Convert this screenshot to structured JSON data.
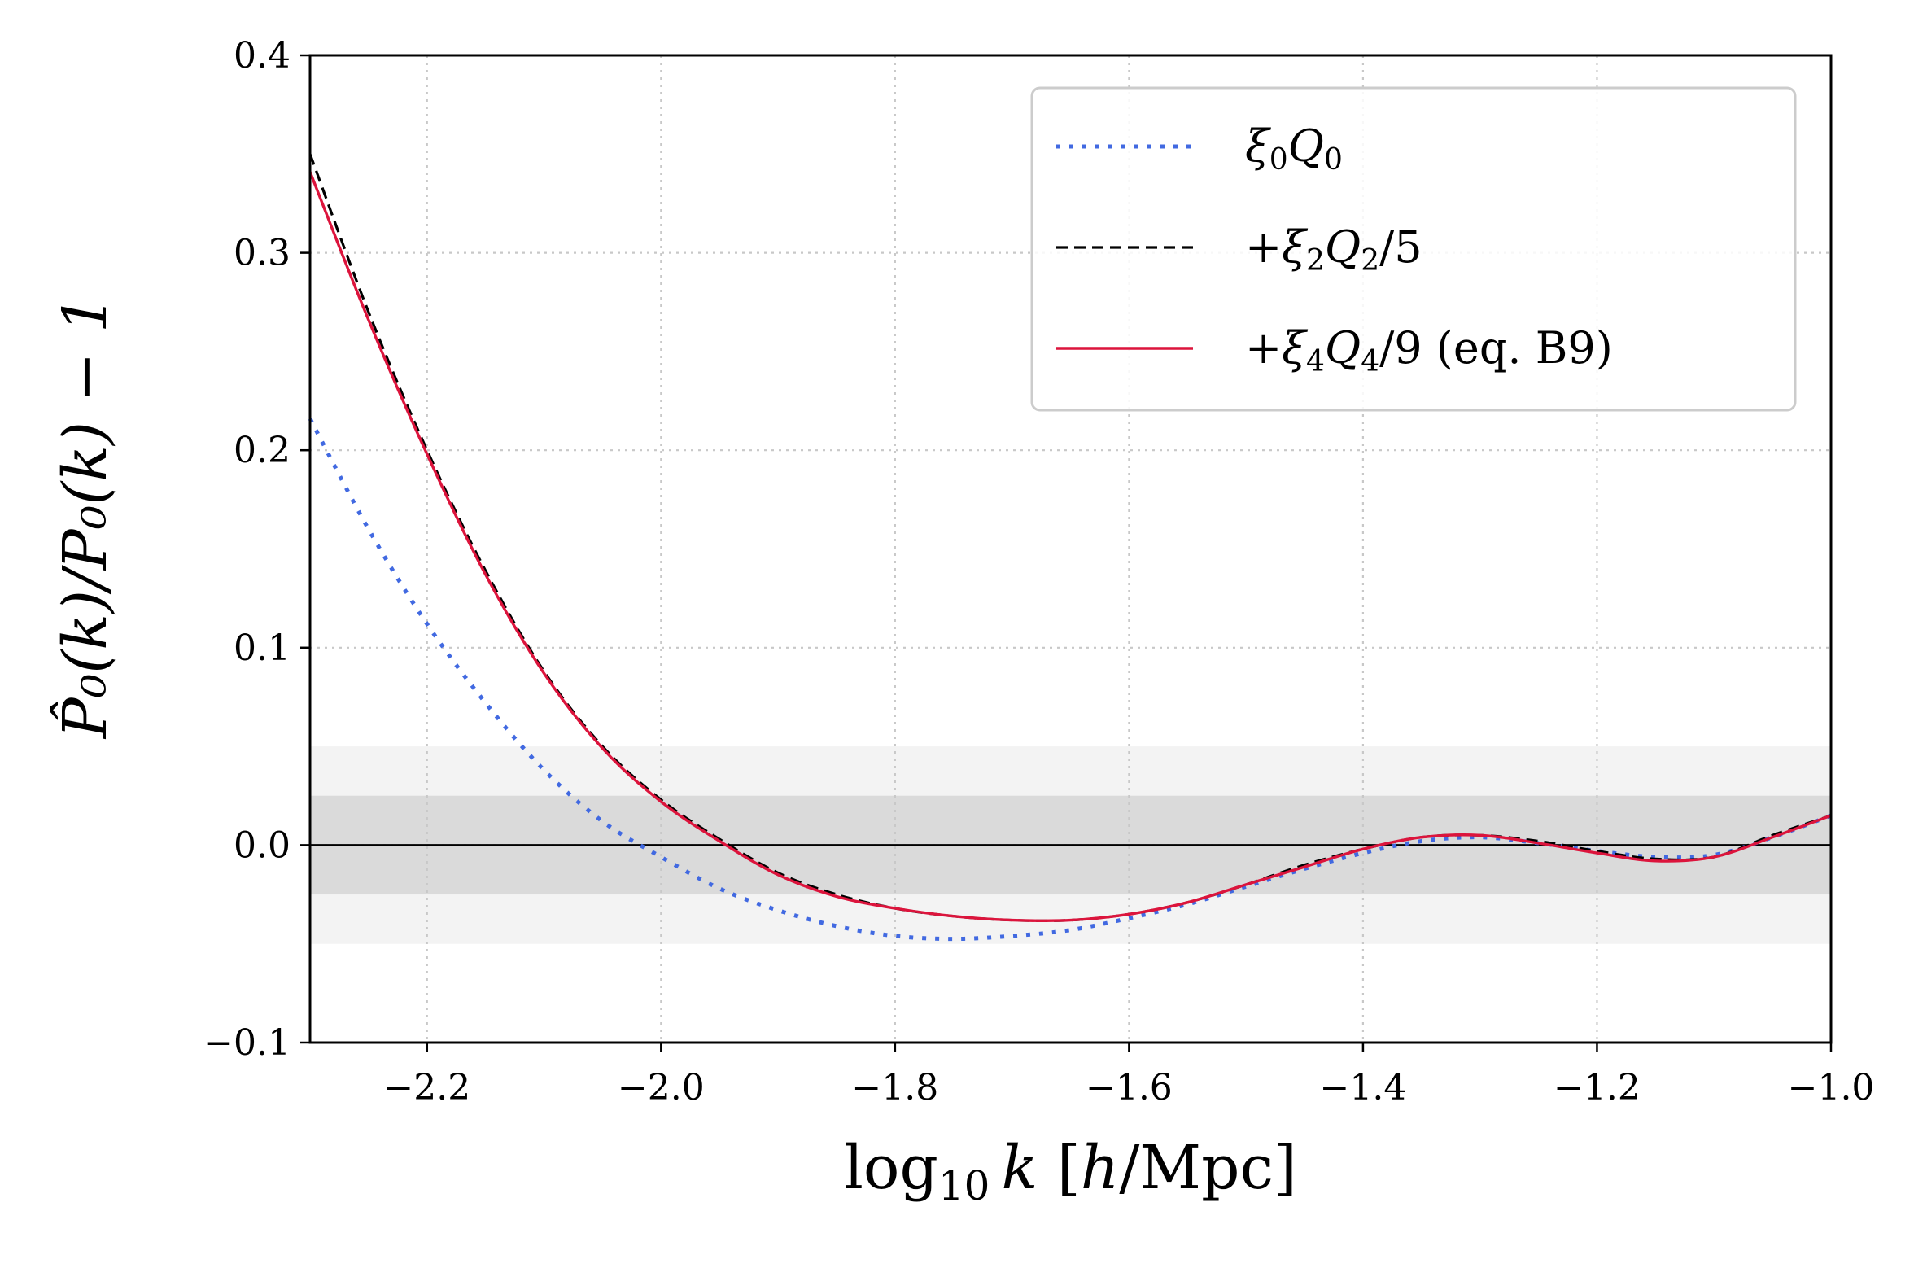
{
  "chart_data": {
    "type": "line",
    "x": [
      -2.3,
      -2.25,
      -2.2,
      -2.15,
      -2.1,
      -2.05,
      -2.0,
      -1.95,
      -1.9,
      -1.85,
      -1.8,
      -1.75,
      -1.7,
      -1.65,
      -1.6,
      -1.55,
      -1.5,
      -1.45,
      -1.4,
      -1.35,
      -1.3,
      -1.25,
      -1.2,
      -1.15,
      -1.1,
      -1.05,
      -1.0
    ],
    "series": [
      {
        "name": "xi0_Q0",
        "label_parts": {
          "main": "ξ",
          "sub1": "0",
          "main2": "Q",
          "sub2": "0",
          "tail": ""
        },
        "color": "#4169e1",
        "style": "dotted",
        "values": [
          0.216,
          0.16,
          0.112,
          0.072,
          0.038,
          0.012,
          -0.006,
          -0.022,
          -0.033,
          -0.041,
          -0.046,
          -0.0475,
          -0.046,
          -0.043,
          -0.037,
          -0.03,
          -0.021,
          -0.012,
          -0.004,
          0.002,
          0.004,
          0.001,
          -0.003,
          -0.006,
          -0.005,
          0.004,
          0.015
        ]
      },
      {
        "name": "xi2_Q2_over_5",
        "label_parts": {
          "main": "+ξ",
          "sub1": "2",
          "main2": "Q",
          "sub2": "2",
          "tail": "/5"
        },
        "color": "#000000",
        "style": "dashed",
        "values": [
          0.35,
          0.27,
          0.2,
          0.139,
          0.088,
          0.05,
          0.023,
          0.003,
          -0.014,
          -0.025,
          -0.032,
          -0.036,
          -0.038,
          -0.038,
          -0.035,
          -0.029,
          -0.02,
          -0.01,
          -0.002,
          0.004,
          0.005,
          0.002,
          -0.003,
          -0.007,
          -0.006,
          0.005,
          0.015
        ]
      },
      {
        "name": "xi4_Q4_over_9",
        "label_parts": {
          "main": "+ξ",
          "sub1": "4",
          "main2": "Q",
          "sub2": "4",
          "tail": "/9 (eq. B9)"
        },
        "color": "#dc143c",
        "style": "solid",
        "values": [
          0.341,
          0.266,
          0.198,
          0.137,
          0.087,
          0.049,
          0.022,
          0.002,
          -0.015,
          -0.026,
          -0.032,
          -0.036,
          -0.038,
          -0.038,
          -0.035,
          -0.029,
          -0.02,
          -0.011,
          -0.002,
          0.004,
          0.005,
          0.001,
          -0.004,
          -0.008,
          -0.006,
          0.004,
          0.015
        ]
      }
    ],
    "bands": [
      {
        "y_range": [
          -0.05,
          0.05
        ],
        "color": "#f3f3f3"
      },
      {
        "y_range": [
          -0.025,
          0.025
        ],
        "color": "#dadada"
      }
    ],
    "xlim": [
      -2.3,
      -1.0
    ],
    "ylim": [
      -0.1,
      0.4
    ],
    "xticks": [
      -2.2,
      -2.0,
      -1.8,
      -1.6,
      -1.4,
      -1.2,
      -1.0
    ],
    "xtick_labels": [
      "−2.2",
      "−2.0",
      "−1.8",
      "−1.6",
      "−1.4",
      "−1.2",
      "−1.0"
    ],
    "yticks": [
      -0.1,
      0.0,
      0.1,
      0.2,
      0.3,
      0.4
    ],
    "ytick_labels": [
      "−0.1",
      "0.0",
      "0.1",
      "0.2",
      "0.3",
      "0.4"
    ],
    "xlabel": {
      "pre": "log",
      "sub": "10",
      "var": "k",
      "post": " [",
      "unit_var": "h",
      "unit": "/Mpc]"
    },
    "ylabel": {
      "text": "P̂₀(k)/P₀(k) − 1"
    },
    "grid": true,
    "legend_position": "top-right"
  }
}
